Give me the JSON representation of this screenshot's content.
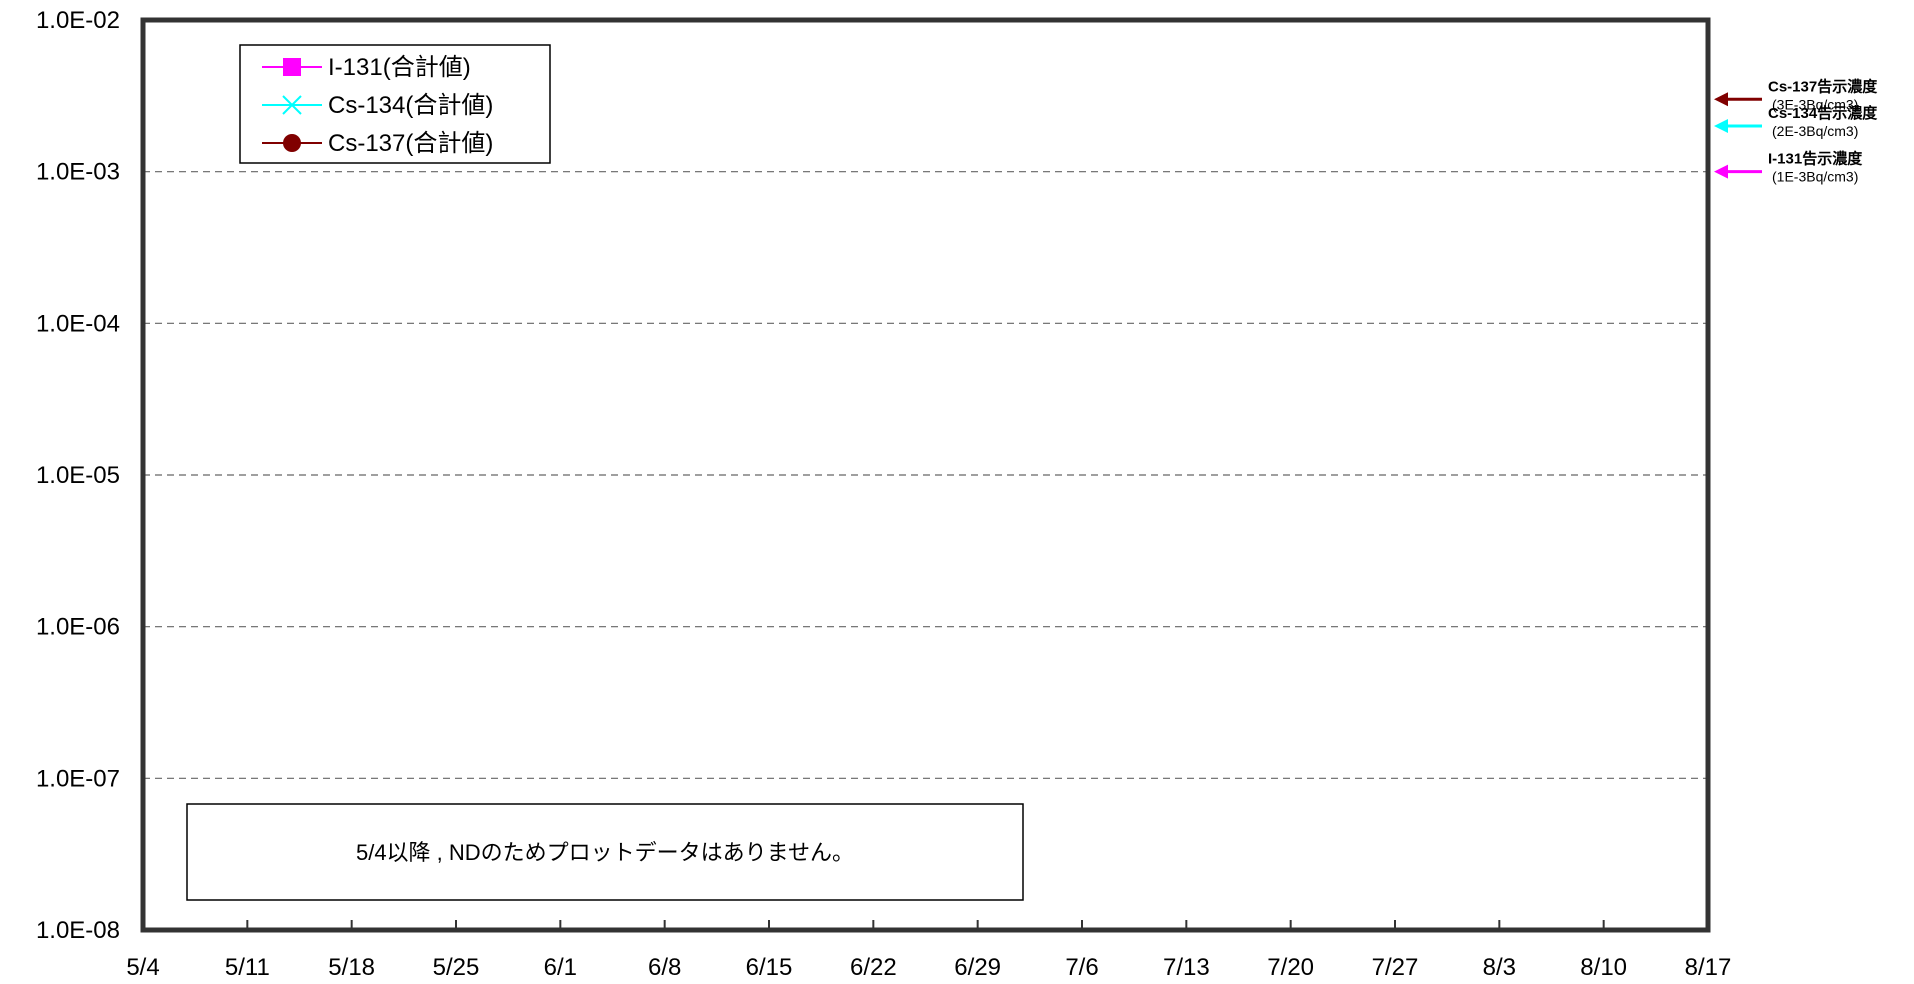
{
  "chart_data": {
    "type": "line",
    "y_scale": "log",
    "ylim": [
      1e-08,
      0.01
    ],
    "y_tick_labels": [
      "1.0E-02",
      "1.0E-03",
      "1.0E-04",
      "1.0E-05",
      "1.0E-06",
      "1.0E-07",
      "1.0E-08"
    ],
    "x_tick_labels": [
      "5/4",
      "5/11",
      "5/18",
      "5/25",
      "6/1",
      "6/8",
      "6/15",
      "6/22",
      "6/29",
      "7/6",
      "7/13",
      "7/20",
      "7/27",
      "8/3",
      "8/10",
      "8/17"
    ],
    "grid": "horizontal dashed",
    "legend_placement": "top-left",
    "series": [
      {
        "name": "I-131(合計値)",
        "color": "#ff00ff",
        "marker": "square",
        "values": []
      },
      {
        "name": "Cs-134(合計値)",
        "color": "#00ffff",
        "marker": "x",
        "values": []
      },
      {
        "name": "Cs-137(合計値)",
        "color": "#800000",
        "marker": "circle",
        "values": []
      }
    ],
    "reference_lines": [
      {
        "label": "Cs-137告示濃度",
        "sublabel": "(3E-3Bq/cm3)",
        "value": 0.003,
        "color": "#800000"
      },
      {
        "label": "Cs-134告示濃度",
        "sublabel": "(2E-3Bq/cm3)",
        "value": 0.002,
        "color": "#00ffff"
      },
      {
        "label": "I-131告示濃度",
        "sublabel": "(1E-3Bq/cm3)",
        "value": 0.001,
        "color": "#ff00ff"
      }
    ],
    "annotation": "5/4以降 , NDのためプロットデータはありません。"
  }
}
